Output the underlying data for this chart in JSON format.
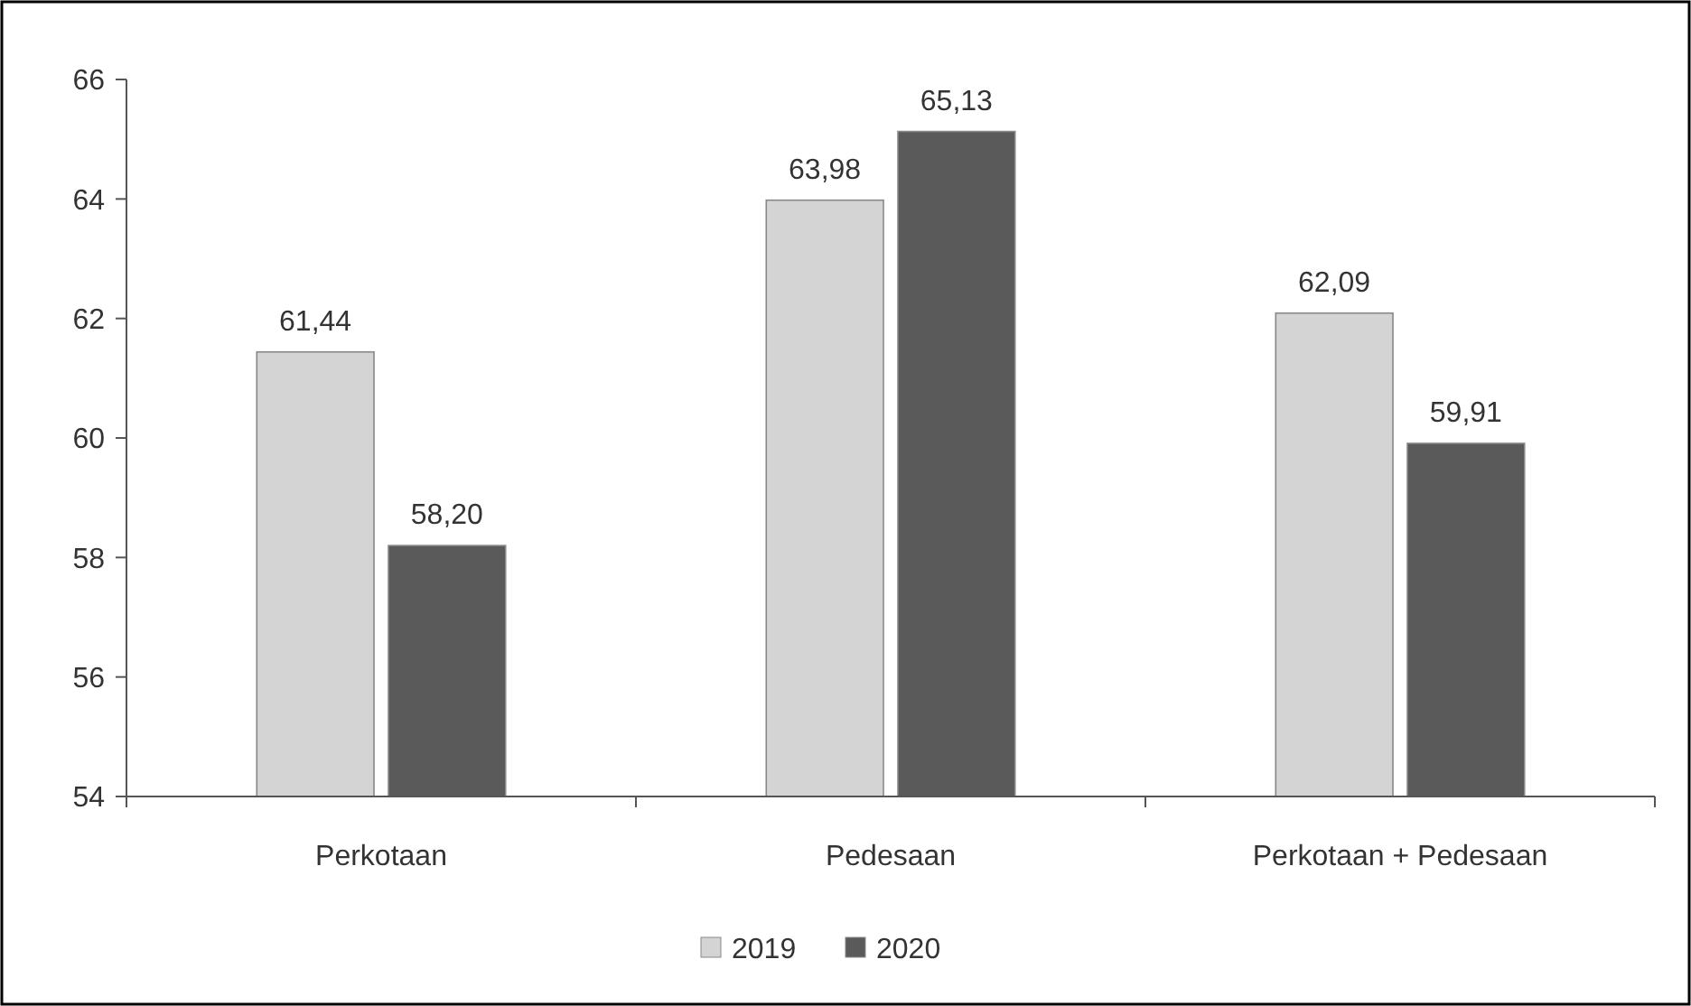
{
  "chart_data": {
    "type": "bar",
    "categories": [
      "Perkotaan",
      "Pedesaan",
      "Perkotaan + Pedesaan"
    ],
    "series": [
      {
        "name": "2019",
        "color": "#d4d4d4",
        "values": [
          61.44,
          63.98,
          62.09
        ],
        "value_labels": [
          "61,44",
          "63,98",
          "62,09"
        ]
      },
      {
        "name": "2020",
        "color": "#5a5a5a",
        "values": [
          58.2,
          65.13,
          59.91
        ],
        "value_labels": [
          "58,20",
          "65,13",
          "59,91"
        ]
      }
    ],
    "ylim": [
      54,
      66
    ],
    "yticks": [
      54,
      56,
      58,
      60,
      62,
      64,
      66
    ],
    "grid": false,
    "legend": "bottom"
  }
}
